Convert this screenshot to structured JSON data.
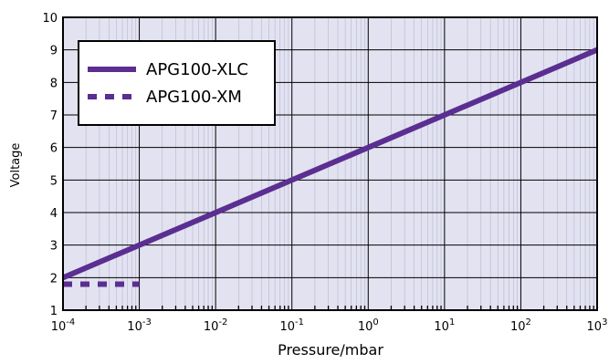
{
  "chart_data": {
    "type": "line",
    "title": "",
    "xlabel": "Pressure/mbar",
    "ylabel": "Voltage",
    "x_scale": "log",
    "x_ticks": [
      {
        "value": 0.0001,
        "base": "10",
        "exp": "-4"
      },
      {
        "value": 0.001,
        "base": "10",
        "exp": "-3"
      },
      {
        "value": 0.01,
        "base": "10",
        "exp": "-2"
      },
      {
        "value": 0.1,
        "base": "10",
        "exp": "-1"
      },
      {
        "value": 1,
        "base": "10",
        "exp": "0"
      },
      {
        "value": 10,
        "base": "10",
        "exp": "1"
      },
      {
        "value": 100,
        "base": "10",
        "exp": "2"
      },
      {
        "value": 1000,
        "base": "10",
        "exp": "3"
      }
    ],
    "xlim": [
      0.0001,
      1000
    ],
    "ylim": [
      1,
      10
    ],
    "y_ticks": [
      "1",
      "2",
      "3",
      "4",
      "5",
      "6",
      "7",
      "8",
      "9",
      "10"
    ],
    "grid": true,
    "legend_position": "top-left",
    "background_color": "#e2e2f1",
    "series": [
      {
        "name": "APG100-XLC",
        "style": "solid",
        "color": "#5b2e91",
        "x": [
          0.0001,
          1000
        ],
        "y": [
          2,
          9
        ]
      },
      {
        "name": "APG100-XM",
        "style": "dashed",
        "color": "#5b2e91",
        "x": [
          0.0001,
          0.001
        ],
        "y": [
          1.8,
          1.8
        ]
      }
    ]
  }
}
